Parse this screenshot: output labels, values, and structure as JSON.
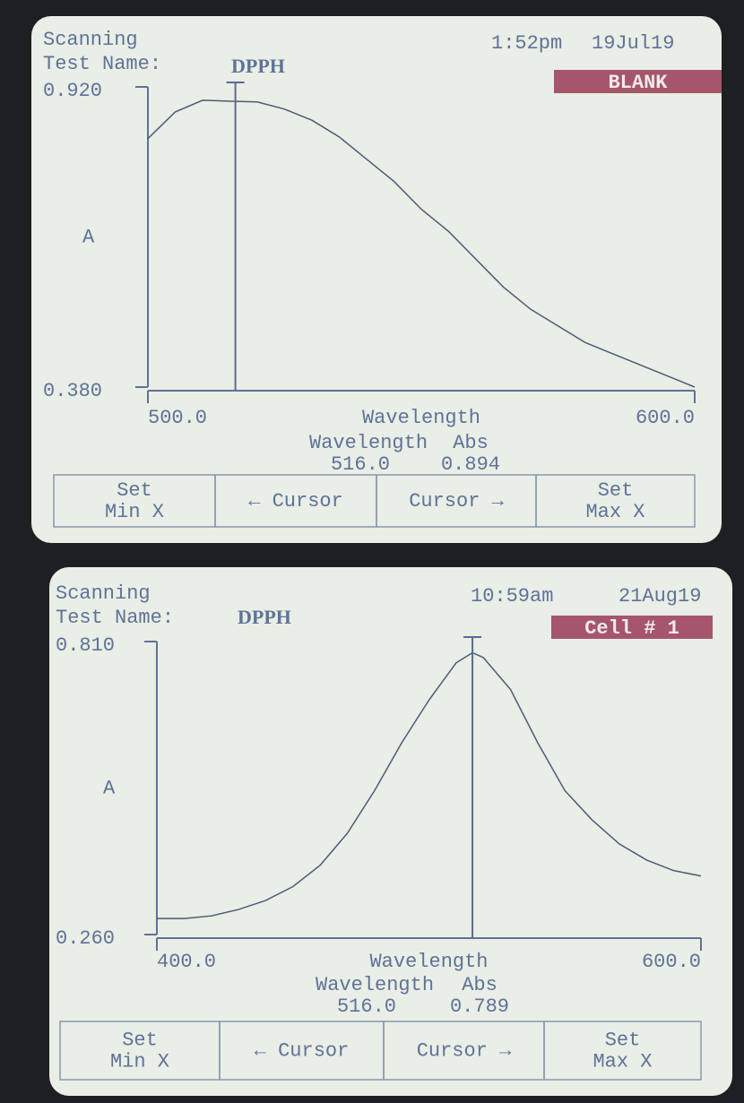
{
  "screens": [
    {
      "status": "Scanning",
      "test_label": "Test Name:",
      "test_name": "DPPH",
      "time": "1:52pm",
      "date": "19Jul19",
      "badge": "BLANK",
      "chart": {
        "type": "line",
        "y_label": "A",
        "x_label": "Wavelength",
        "x": [
          500,
          505,
          510,
          516,
          520,
          525,
          530,
          535,
          540,
          545,
          550,
          555,
          560,
          565,
          570,
          575,
          580,
          585,
          590,
          595,
          600
        ],
        "values": [
          0.827,
          0.875,
          0.896,
          0.894,
          0.893,
          0.88,
          0.86,
          0.83,
          0.79,
          0.75,
          0.7,
          0.66,
          0.61,
          0.56,
          0.52,
          0.49,
          0.46,
          0.44,
          0.42,
          0.4,
          0.38
        ],
        "xlim": [
          500,
          600
        ],
        "xticks": [
          {
            "value": 500,
            "label": "500.0"
          },
          {
            "value": 600,
            "label": "600.0"
          }
        ],
        "ylim": [
          0.38,
          0.92
        ],
        "yticks": [
          {
            "value": 0.38,
            "label": "0.380"
          },
          {
            "value": 0.92,
            "label": "0.920"
          }
        ]
      },
      "readout": {
        "wavelength_label": "Wavelength",
        "abs_label": "Abs",
        "wavelength": {
          "value": 516,
          "label": "516.0"
        },
        "abs": 0.894
      },
      "buttons": [
        [
          "Set",
          "Min X"
        ],
        [
          "← Cursor"
        ],
        [
          "Cursor →"
        ],
        [
          "Set",
          "Max X"
        ]
      ]
    },
    {
      "status": "Scanning",
      "test_label": "Test Name:",
      "test_name": "DPPH",
      "time": "10:59am",
      "date": "21Aug19",
      "badge": "Cell # 1",
      "chart": {
        "type": "line",
        "y_label": "A",
        "x_label": "Wavelength",
        "x": [
          400,
          410,
          420,
          430,
          440,
          450,
          460,
          470,
          480,
          490,
          500,
          510,
          516,
          520,
          530,
          540,
          550,
          560,
          570,
          580,
          590,
          600
        ],
        "values": [
          0.29,
          0.29,
          0.295,
          0.307,
          0.324,
          0.35,
          0.39,
          0.45,
          0.53,
          0.62,
          0.7,
          0.77,
          0.789,
          0.78,
          0.72,
          0.62,
          0.53,
          0.475,
          0.43,
          0.4,
          0.38,
          0.37
        ],
        "xlim": [
          400,
          600
        ],
        "xticks": [
          {
            "value": 400,
            "label": "400.0"
          },
          {
            "value": 600,
            "label": "600.0"
          }
        ],
        "ylim": [
          0.26,
          0.81
        ],
        "yticks": [
          {
            "value": 0.26,
            "label": "0.260"
          },
          {
            "value": 0.81,
            "label": "0.810"
          }
        ]
      },
      "readout": {
        "wavelength_label": "Wavelength",
        "abs_label": "Abs",
        "wavelength": {
          "value": 516,
          "label": "516.0"
        },
        "abs": 0.789
      },
      "buttons": [
        [
          "Set",
          "Min X"
        ],
        [
          "← Cursor"
        ],
        [
          "Cursor →"
        ],
        [
          "Set",
          "Max X"
        ]
      ]
    }
  ]
}
